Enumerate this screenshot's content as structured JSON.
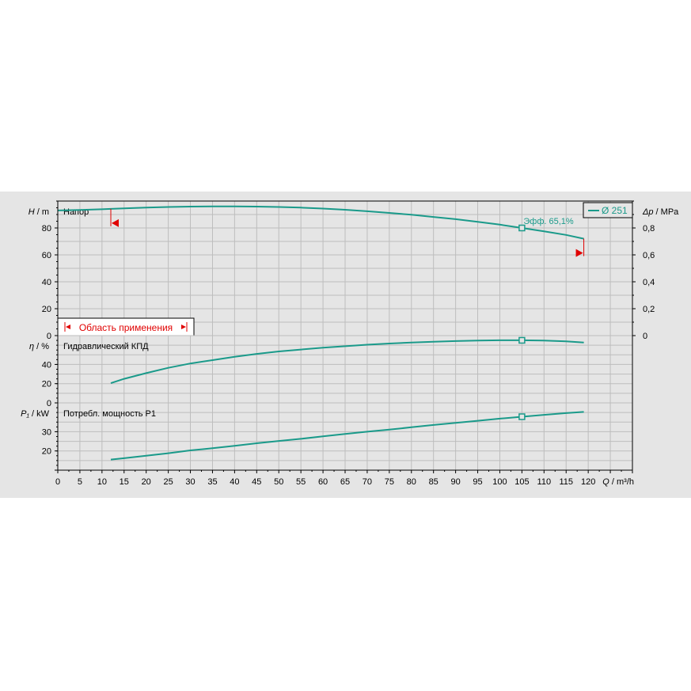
{
  "chart_data": {
    "type": "line",
    "x_label": "Q / m³/h",
    "x_axis": {
      "label_symbol": "Q",
      "label_unit": "m³/h",
      "min": 0,
      "max": 130,
      "ticks": [
        0,
        5,
        10,
        15,
        20,
        25,
        30,
        35,
        40,
        45,
        50,
        55,
        60,
        65,
        70,
        75,
        80,
        85,
        90,
        95,
        100,
        105,
        110,
        115,
        120
      ]
    },
    "legend": {
      "label": "Ø 251",
      "color": "#1a9a8a"
    },
    "line_color": "#1a9a8a",
    "range_color": "#e00000",
    "operating_range": {
      "label": "Область применения",
      "min_q": 12,
      "max_q": 119
    },
    "duty_point": {
      "q": 105,
      "label": "Эфф.  65,1%"
    },
    "panels": [
      {
        "id": "head",
        "title": "Напор",
        "ylabel_symbol": "H",
        "ylabel_unit": "m",
        "ylim": [
          0,
          100
        ],
        "yticks": [
          0,
          20,
          40,
          60,
          80
        ],
        "right_axis": {
          "symbol": "Δp",
          "unit": "MPa",
          "ticks": [
            {
              "v": 0,
              "label": "0"
            },
            {
              "v": 20,
              "label": "0,2"
            },
            {
              "v": 40,
              "label": "0,4"
            },
            {
              "v": 60,
              "label": "0,6"
            },
            {
              "v": 80,
              "label": "0,8"
            }
          ]
        },
        "series": {
          "name": "Ø 251",
          "x": [
            0,
            5,
            10,
            12,
            15,
            20,
            25,
            30,
            35,
            40,
            45,
            50,
            55,
            60,
            65,
            70,
            75,
            80,
            85,
            90,
            95,
            100,
            105,
            110,
            115,
            119
          ],
          "y": [
            93.0,
            93.4,
            93.9,
            94.2,
            94.6,
            95.2,
            95.6,
            95.9,
            96.0,
            96.0,
            95.9,
            95.6,
            95.1,
            94.4,
            93.5,
            92.4,
            91.2,
            89.8,
            88.2,
            86.5,
            84.6,
            82.5,
            80.0,
            77.5,
            74.8,
            72.0
          ]
        }
      },
      {
        "id": "eff",
        "title": "Гидравлический КПД",
        "ylabel_symbol": "η",
        "ylabel_unit": "%",
        "ylim": [
          0,
          70
        ],
        "yticks": [
          0,
          20,
          40
        ],
        "series": {
          "name": "Ø 251",
          "x": [
            12,
            15,
            20,
            25,
            30,
            35,
            40,
            45,
            50,
            55,
            60,
            65,
            70,
            75,
            80,
            85,
            90,
            95,
            100,
            105,
            110,
            115,
            119
          ],
          "y": [
            20.5,
            25,
            31,
            36.5,
            41,
            44.5,
            48,
            51,
            53.5,
            55.5,
            57.5,
            59,
            60.5,
            61.8,
            62.8,
            63.6,
            64.3,
            64.8,
            65.1,
            65.1,
            64.8,
            64.0,
            62.8
          ]
        }
      },
      {
        "id": "power",
        "title": "Потребл. мощность P1",
        "ylabel_symbol": "P₁",
        "ylabel_unit": "kW",
        "ylim": [
          10,
          45
        ],
        "yticks": [
          20,
          30
        ],
        "series": {
          "name": "Ø 251",
          "x": [
            12,
            15,
            20,
            25,
            30,
            35,
            40,
            45,
            50,
            55,
            60,
            65,
            70,
            75,
            80,
            85,
            90,
            95,
            100,
            105,
            110,
            115,
            119
          ],
          "y": [
            15.5,
            16.2,
            17.5,
            18.8,
            20.3,
            21.4,
            22.7,
            24.0,
            25.2,
            26.3,
            27.6,
            28.8,
            30.0,
            31.1,
            32.3,
            33.5,
            34.6,
            35.7,
            36.8,
            37.8,
            38.8,
            39.7,
            40.3
          ]
        }
      }
    ]
  }
}
